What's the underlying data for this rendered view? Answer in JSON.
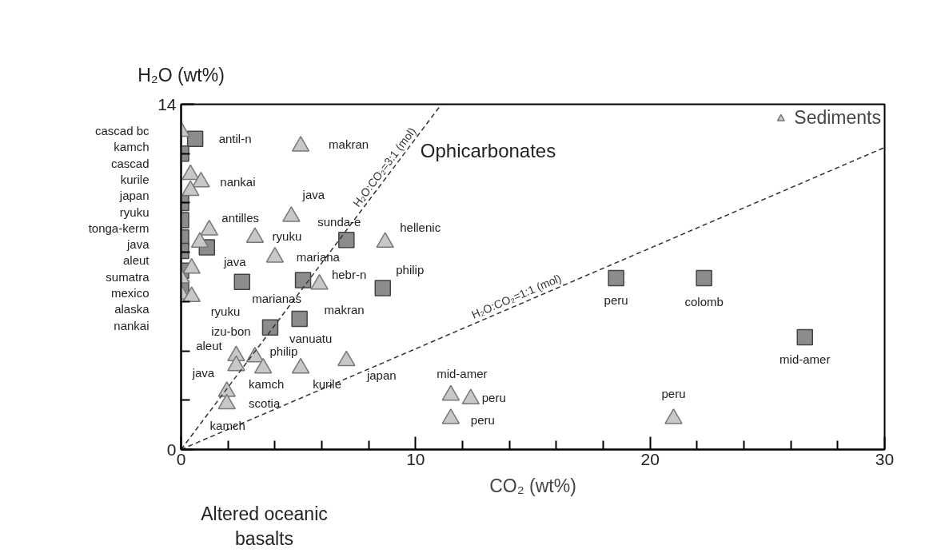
{
  "chart_data": {
    "type": "scatter",
    "xlabel": "CO₂ (wt%)",
    "ylabel": "H₂O (wt%)",
    "xlim": [
      0,
      30
    ],
    "ylim": [
      0,
      14
    ],
    "xticks": [
      0,
      {
        "value": 2,
        "label": null
      },
      {
        "value": 4,
        "label": null
      },
      {
        "value": 6,
        "label": null
      },
      {
        "value": 8,
        "label": null
      },
      10,
      {
        "value": 12,
        "label": null
      },
      {
        "value": 14,
        "label": null
      },
      {
        "value": 16,
        "label": null
      },
      {
        "value": 18,
        "label": null
      },
      20,
      {
        "value": 22,
        "label": null
      },
      {
        "value": 24,
        "label": null
      },
      {
        "value": 26,
        "label": null
      },
      {
        "value": 28,
        "label": null
      },
      30
    ],
    "yticks": [
      0,
      {
        "value": 2,
        "label": null
      },
      {
        "value": 4,
        "label": null
      },
      {
        "value": 6,
        "label": null
      },
      {
        "value": 8,
        "label": null
      },
      {
        "value": 10,
        "label": null
      },
      {
        "value": 12,
        "label": null
      },
      14
    ],
    "grid": false,
    "legend": "top right",
    "series": [
      {
        "marker": "square",
        "color": "#8c8c8c",
        "x": [
          0.6,
          0,
          0,
          0,
          0,
          0,
          1.1,
          0,
          0,
          2.6,
          5.2,
          7.05,
          8.6,
          5.05,
          3.8,
          18.55,
          22.3,
          26.6
        ],
        "values": [
          12.6,
          12.0,
          10.0,
          9.3,
          8.6,
          8.05,
          8.2,
          7.25,
          6.55,
          6.8,
          6.87,
          8.5,
          6.55,
          5.3,
          4.95,
          6.95,
          6.95,
          4.55
        ]
      },
      {
        "marker": "triangle",
        "name": "Sediments",
        "color": "#c8c8c8",
        "x": [
          0,
          0.4,
          0.85,
          0.4,
          1.2,
          0.8,
          0.45,
          0,
          0,
          0.45,
          5.1,
          4.7,
          3.15,
          4.0,
          5.9,
          8.7,
          2.35,
          2.35,
          3.15,
          3.5,
          5.1,
          7.05,
          1.95,
          1.95,
          11.5,
          12.35,
          11.5,
          21.0
        ],
        "values": [
          12.9,
          11.15,
          10.85,
          10.5,
          8.9,
          8.4,
          7.35,
          6.95,
          6.3,
          6.2,
          12.3,
          9.45,
          8.6,
          7.8,
          6.7,
          8.4,
          3.8,
          3.4,
          3.75,
          3.3,
          3.3,
          3.6,
          2.35,
          1.85,
          2.2,
          2.05,
          1.25,
          1.25
        ]
      },
      {
        "type": "line",
        "name": "H₂O:CO₂=3:1 (mol)",
        "color": "#333333",
        "line_style": "dashed",
        "x": [
          0,
          11.1
        ],
        "values": [
          0,
          14
        ]
      },
      {
        "type": "line",
        "name": "H₂O:CO₂=1:1 (mol)",
        "color": "#333333",
        "line_style": "dashed",
        "x": [
          0,
          30
        ],
        "values": [
          0,
          12.25
        ]
      }
    ],
    "annotations": [
      "cascad bc",
      "kamch",
      "cascad",
      "kurile",
      "japan",
      "ryuku",
      "tonga-kerm",
      "java",
      "aleut",
      "sumatra",
      "mexico",
      "alaska",
      "nankai",
      "Ophicarbonates",
      "Altered oceanic basalts",
      {
        "text": "antil-n",
        "x": 0.6,
        "y": 12.6
      },
      {
        "text": "makran",
        "x": 5.1,
        "y": 12.3
      },
      {
        "text": "nankai",
        "x": 0.85,
        "y": 10.85
      },
      {
        "text": "java",
        "x": 4.7,
        "y": 9.45
      },
      {
        "text": "antilles",
        "x": 1.2,
        "y": 8.9
      },
      {
        "text": "ryuku",
        "x": 3.15,
        "y": 8.6
      },
      {
        "text": "sunda-e",
        "x": 7.05,
        "y": 8.5
      },
      {
        "text": "hellenic",
        "x": 8.7,
        "y": 8.4
      },
      {
        "text": "mariana",
        "x": 4.0,
        "y": 7.8
      },
      {
        "text": "java",
        "x": 2.6,
        "y": 6.8
      },
      {
        "text": "philip",
        "x": 8.6,
        "y": 6.55
      },
      {
        "text": "hebr-n",
        "x": 5.9,
        "y": 6.7
      },
      {
        "text": "marianas",
        "x": 5.2,
        "y": 6.87
      },
      {
        "text": "makran",
        "x": 5.05,
        "y": 5.3
      },
      {
        "text": "ryuku",
        "x": 3.8,
        "y": 4.95
      },
      {
        "text": "izu-bon",
        "x": 3.8,
        "y": 4.95
      },
      {
        "text": "vanuatu",
        "x": 5.05,
        "y": 5.3
      },
      {
        "text": "aleut",
        "x": 2.35,
        "y": 3.8
      },
      {
        "text": "philip",
        "x": 3.15,
        "y": 3.75
      },
      {
        "text": "java",
        "x": 2.35,
        "y": 3.4
      },
      {
        "text": "kamch",
        "x": 3.5,
        "y": 3.3
      },
      {
        "text": "kurile",
        "x": 5.1,
        "y": 3.3
      },
      {
        "text": "japan",
        "x": 7.05,
        "y": 3.6
      },
      {
        "text": "scotia",
        "x": 1.95,
        "y": 1.85
      },
      {
        "text": "kamch",
        "x": 1.95,
        "y": 1.85
      },
      {
        "text": "peru",
        "x": 18.55,
        "y": 6.95
      },
      {
        "text": "colomb",
        "x": 22.3,
        "y": 6.95
      },
      {
        "text": "mid-amer",
        "x": 26.6,
        "y": 4.55
      },
      {
        "text": "mid-amer",
        "x": 11.5,
        "y": 2.2
      },
      {
        "text": "peru",
        "x": 12.35,
        "y": 2.05
      },
      {
        "text": "peru",
        "x": 11.5,
        "y": 1.25
      },
      {
        "text": "peru",
        "x": 21.0,
        "y": 1.25
      }
    ]
  }
}
